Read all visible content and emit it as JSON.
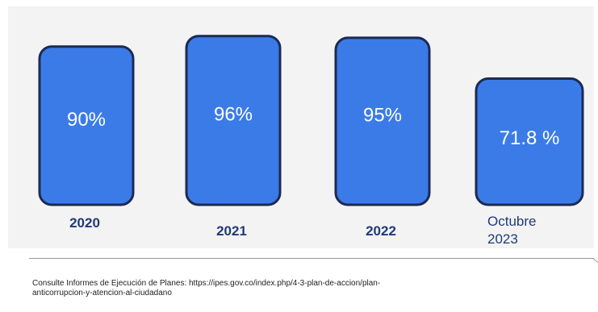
{
  "chart_data": {
    "type": "bar",
    "categories": [
      "2020",
      "2021",
      "2022",
      "Octubre\n2023"
    ],
    "values": [
      90,
      96,
      95,
      71.8
    ],
    "value_labels": [
      "90%",
      "96%",
      "95%",
      "71.8 %"
    ],
    "unit": "%",
    "title": "",
    "xlabel": "",
    "ylabel": "",
    "ylim": [
      0,
      100
    ],
    "grid": false,
    "legend": "none"
  },
  "colors": {
    "bar_fill": "#3b7be8",
    "bar_stroke": "#1c2a52",
    "category_text": "#1f3a7a",
    "panel_background": "#f3f3f3"
  },
  "footer": {
    "source_note": "Consulte Informes de Ejecución de Planes: https://ipes.gov.co/index.php/4-3-plan-de-accion/plan-\nanticorrupcion-y-atencion-al-ciudadano"
  }
}
